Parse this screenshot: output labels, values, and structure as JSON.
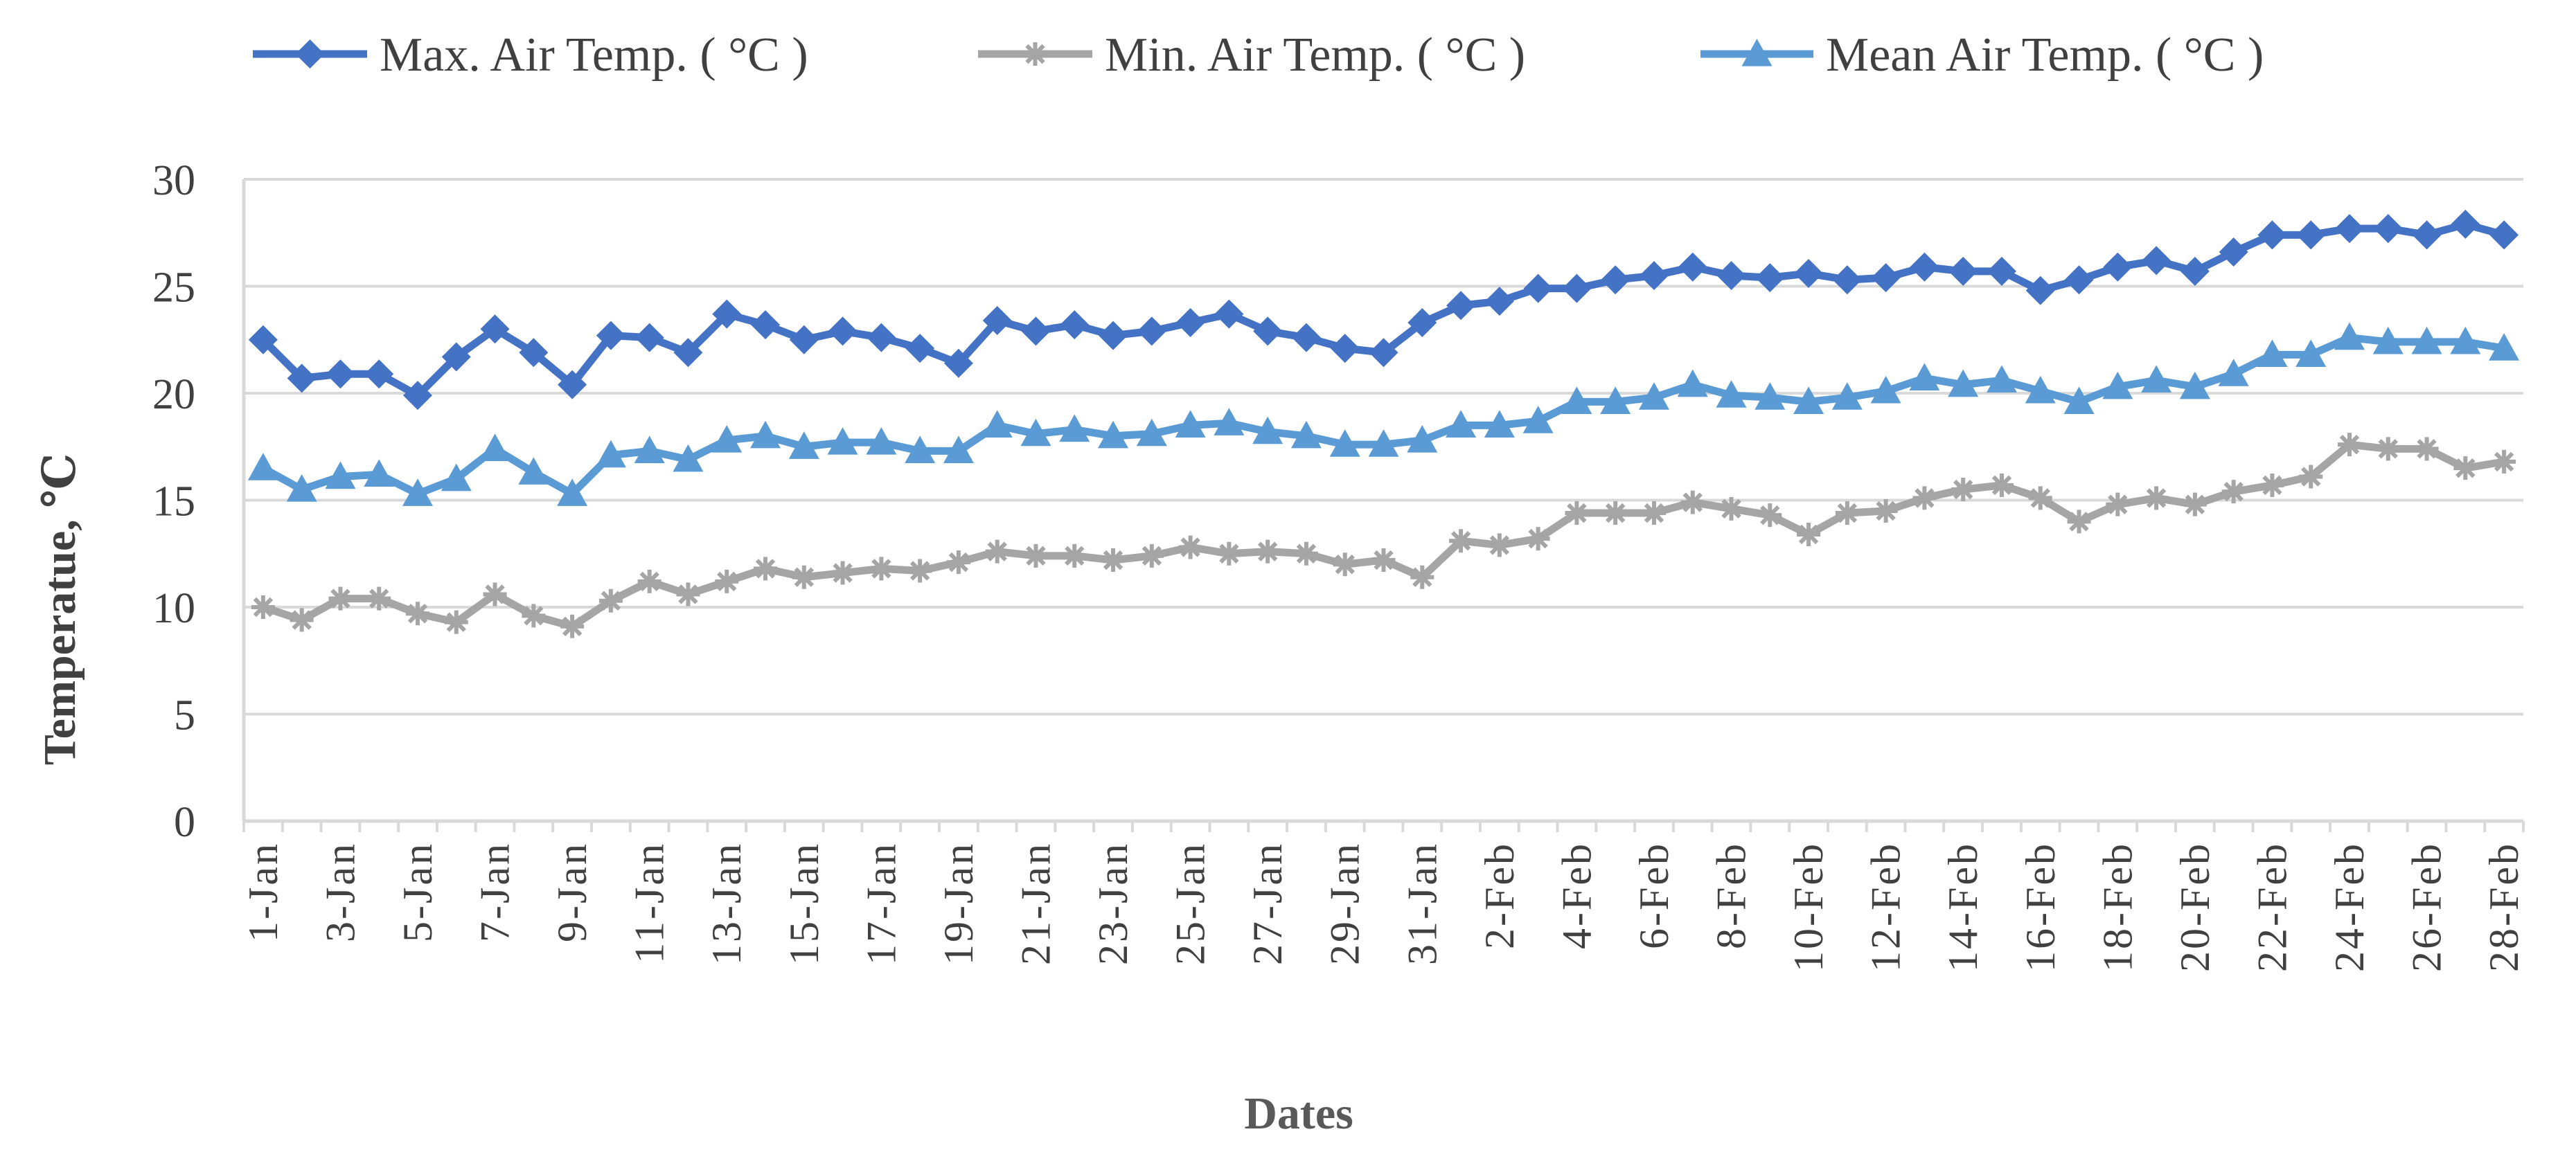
{
  "chart_data": {
    "type": "line",
    "title": "",
    "xlabel": "Dates",
    "ylabel": "Temperatue, ℃",
    "ylim": [
      0,
      30
    ],
    "yticks": [
      0,
      5,
      10,
      15,
      20,
      25,
      30
    ],
    "grid": true,
    "legend_position": "top",
    "categories": [
      "1-Jan",
      "2-Jan",
      "3-Jan",
      "4-Jan",
      "5-Jan",
      "6-Jan",
      "7-Jan",
      "8-Jan",
      "9-Jan",
      "10-Jan",
      "11-Jan",
      "12-Jan",
      "13-Jan",
      "14-Jan",
      "15-Jan",
      "16-Jan",
      "17-Jan",
      "18-Jan",
      "19-Jan",
      "20-Jan",
      "21-Jan",
      "22-Jan",
      "23-Jan",
      "24-Jan",
      "25-Jan",
      "26-Jan",
      "27-Jan",
      "28-Jan",
      "29-Jan",
      "30-Jan",
      "31-Jan",
      "1-Feb",
      "2-Feb",
      "3-Feb",
      "4-Feb",
      "5-Feb",
      "6-Feb",
      "7-Feb",
      "8-Feb",
      "9-Feb",
      "10-Feb",
      "11-Feb",
      "12-Feb",
      "13-Feb",
      "14-Feb",
      "15-Feb",
      "16-Feb",
      "17-Feb",
      "18-Feb",
      "19-Feb",
      "20-Feb",
      "21-Feb",
      "22-Feb",
      "23-Feb",
      "24-Feb",
      "25-Feb",
      "26-Feb",
      "27-Feb",
      "28-Feb"
    ],
    "tick_labels": [
      "1-Jan",
      "3-Jan",
      "5-Jan",
      "7-Jan",
      "9-Jan",
      "11-Jan",
      "13-Jan",
      "15-Jan",
      "17-Jan",
      "19-Jan",
      "21-Jan",
      "23-Jan",
      "25-Jan",
      "27-Jan",
      "29-Jan",
      "31-Jan",
      "2-Feb",
      "4-Feb",
      "6-Feb",
      "8-Feb",
      "10-Feb",
      "12-Feb",
      "14-Feb",
      "16-Feb",
      "18-Feb",
      "20-Feb",
      "22-Feb",
      "24-Feb",
      "26-Feb",
      "28-Feb"
    ],
    "series": [
      {
        "name": "Max. Air Temp. ( °C )",
        "color": "#4472C4",
        "marker": "diamond",
        "values": [
          22.5,
          20.7,
          20.9,
          20.9,
          19.9,
          21.7,
          23.0,
          21.9,
          20.4,
          22.7,
          22.6,
          21.9,
          23.7,
          23.2,
          22.5,
          22.9,
          22.6,
          22.1,
          21.4,
          23.4,
          22.9,
          23.2,
          22.7,
          22.9,
          23.3,
          23.7,
          22.9,
          22.6,
          22.1,
          21.9,
          23.3,
          24.1,
          24.3,
          24.9,
          24.9,
          25.3,
          25.5,
          25.9,
          25.5,
          25.4,
          25.6,
          25.3,
          25.4,
          25.9,
          25.7,
          25.7,
          24.8,
          25.3,
          25.9,
          26.2,
          25.7,
          26.6,
          27.4,
          27.4,
          27.7,
          27.7,
          27.4,
          27.9,
          27.4
        ]
      },
      {
        "name": "Min. Air Temp. ( °C )",
        "color": "#A5A5A5",
        "marker": "star",
        "values": [
          10.0,
          9.4,
          10.4,
          10.4,
          9.7,
          9.3,
          10.6,
          9.6,
          9.1,
          10.3,
          11.2,
          10.6,
          11.2,
          11.8,
          11.4,
          11.6,
          11.8,
          11.7,
          12.1,
          12.6,
          12.4,
          12.4,
          12.2,
          12.4,
          12.8,
          12.5,
          12.6,
          12.5,
          12.0,
          12.2,
          11.4,
          13.1,
          12.9,
          13.2,
          14.4,
          14.4,
          14.4,
          14.9,
          14.6,
          14.3,
          13.4,
          14.4,
          14.5,
          15.1,
          15.5,
          15.7,
          15.1,
          14.0,
          14.8,
          15.1,
          14.8,
          15.4,
          15.7,
          16.1,
          17.6,
          17.4,
          17.4,
          16.5,
          16.8
        ]
      },
      {
        "name": "Mean Air Temp. ( °C )",
        "color": "#5B9BD5",
        "marker": "triangle",
        "values": [
          16.5,
          15.5,
          16.1,
          16.2,
          15.3,
          16.0,
          17.4,
          16.3,
          15.3,
          17.1,
          17.3,
          16.9,
          17.8,
          18.0,
          17.5,
          17.7,
          17.7,
          17.3,
          17.3,
          18.5,
          18.1,
          18.3,
          18.0,
          18.1,
          18.5,
          18.6,
          18.2,
          18.0,
          17.6,
          17.6,
          17.8,
          18.5,
          18.5,
          18.7,
          19.6,
          19.6,
          19.8,
          20.4,
          19.9,
          19.8,
          19.6,
          19.8,
          20.1,
          20.7,
          20.4,
          20.6,
          20.1,
          19.6,
          20.3,
          20.6,
          20.3,
          20.9,
          21.8,
          21.8,
          22.6,
          22.4,
          22.4,
          22.4,
          22.1
        ]
      }
    ]
  }
}
